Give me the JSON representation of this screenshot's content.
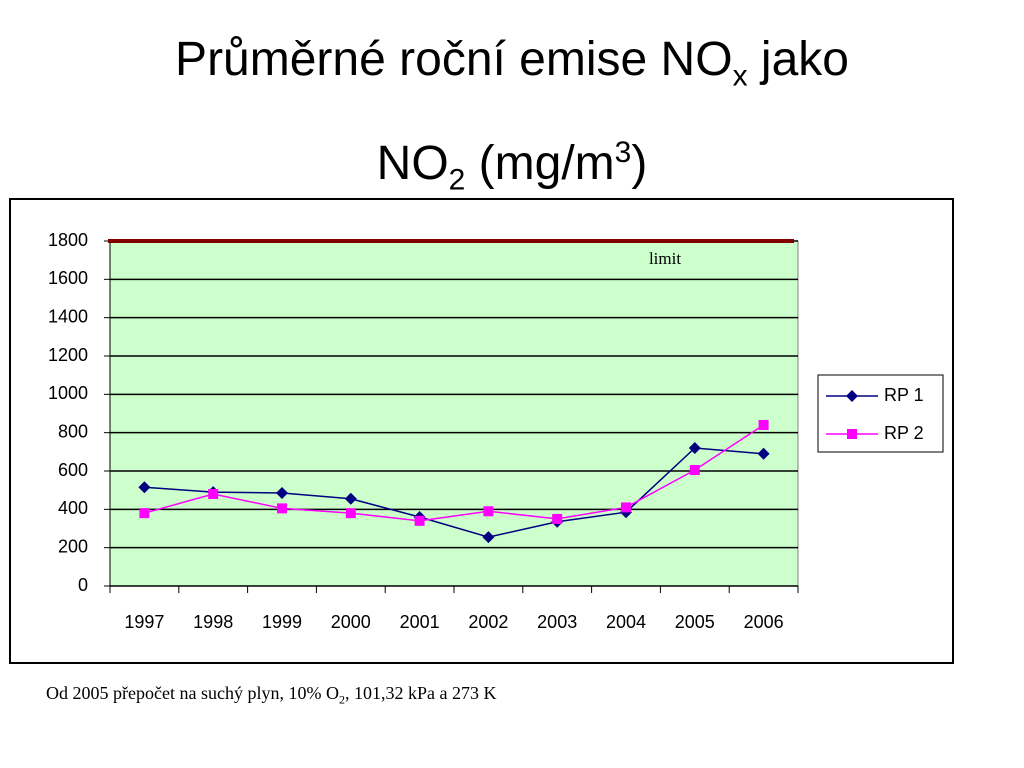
{
  "chart_data": {
    "type": "line",
    "title": {
      "line1": [
        "Průměrné roční emise NO",
        "x",
        " jako"
      ],
      "line2": [
        "NO",
        "2",
        " (mg/m",
        "3",
        ")"
      ]
    },
    "footnote": [
      "Od 2005 přepočet na suchý plyn, 10% O",
      "2",
      ", 101,32 kPa a 273 K"
    ],
    "categories": [
      "1997",
      "1998",
      "1999",
      "2000",
      "2001",
      "2002",
      "2003",
      "2004",
      "2005",
      "2006"
    ],
    "series": [
      {
        "name": "RP 1",
        "color": "#000080",
        "marker": "diamond",
        "values": [
          515,
          490,
          485,
          455,
          360,
          255,
          335,
          385,
          720,
          690
        ]
      },
      {
        "name": "RP 2",
        "color": "#ff00ff",
        "marker": "square",
        "values": [
          380,
          480,
          405,
          380,
          340,
          390,
          350,
          410,
          605,
          840
        ]
      }
    ],
    "limit": {
      "value": 1800,
      "label": "limit",
      "color": "#800000"
    },
    "ylim": [
      0,
      1800
    ],
    "yticks": [
      0,
      200,
      400,
      600,
      800,
      1000,
      1200,
      1400,
      1600,
      1800
    ],
    "grid": true,
    "plot_background": "#ccffcc",
    "legend": "right"
  }
}
